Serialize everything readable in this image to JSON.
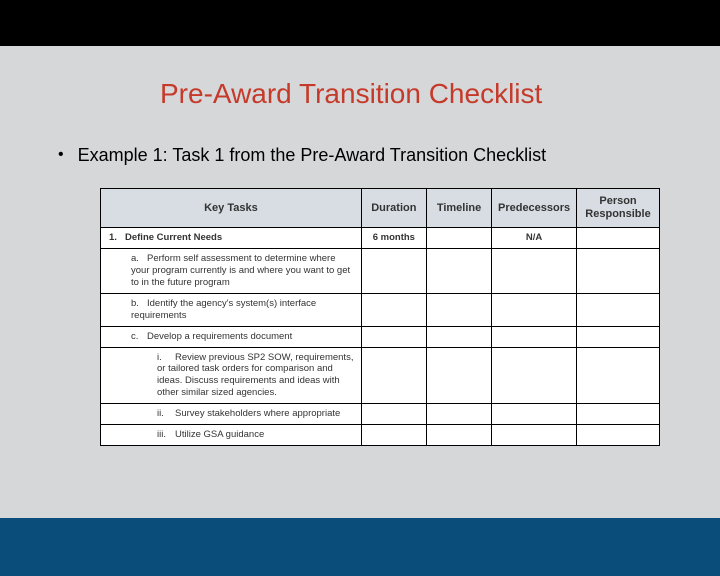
{
  "colors": {
    "page_bg": "#d6d7d8",
    "top_bar": "#000000",
    "title": "#c53a2b",
    "bottom_bar": "#0a4d7a",
    "table_header_bg": "#d8dde3",
    "table_border": "#000000",
    "text": "#000000"
  },
  "slide": {
    "title": "Pre-Award Transition Checklist",
    "bullet": "Example 1: Task 1 from the Pre-Award Transition Checklist"
  },
  "table": {
    "columns": [
      "Key Tasks",
      "Duration",
      "Timeline",
      "Predecessors",
      "Person Responsible"
    ],
    "column_widths_pct": [
      44,
      11,
      11,
      11,
      14
    ],
    "rows": [
      {
        "level": 0,
        "marker": "1.",
        "text": "Define Current Needs",
        "duration": "6 months",
        "timeline": "",
        "predecessors": "N/A",
        "person": "",
        "bold": true
      },
      {
        "level": 1,
        "marker": "a.",
        "text": "Perform self assessment to determine where your program currently is and where you want to get to in the future program",
        "duration": "",
        "timeline": "",
        "predecessors": "",
        "person": ""
      },
      {
        "level": 1,
        "marker": "b.",
        "text": "Identify the agency's system(s) interface requirements",
        "duration": "",
        "timeline": "",
        "predecessors": "",
        "person": ""
      },
      {
        "level": 1,
        "marker": "c.",
        "text": "Develop a requirements document",
        "duration": "",
        "timeline": "",
        "predecessors": "",
        "person": ""
      },
      {
        "level": 2,
        "marker": "i.",
        "text": "Review previous SP2 SOW, requirements, or tailored task orders for comparison and ideas. Discuss requirements and ideas with other similar sized agencies.",
        "duration": "",
        "timeline": "",
        "predecessors": "",
        "person": ""
      },
      {
        "level": 2,
        "marker": "ii.",
        "text": "Survey stakeholders where appropriate",
        "duration": "",
        "timeline": "",
        "predecessors": "",
        "person": ""
      },
      {
        "level": 2,
        "marker": "iii.",
        "text": "Utilize GSA guidance",
        "duration": "",
        "timeline": "",
        "predecessors": "",
        "person": ""
      }
    ]
  }
}
